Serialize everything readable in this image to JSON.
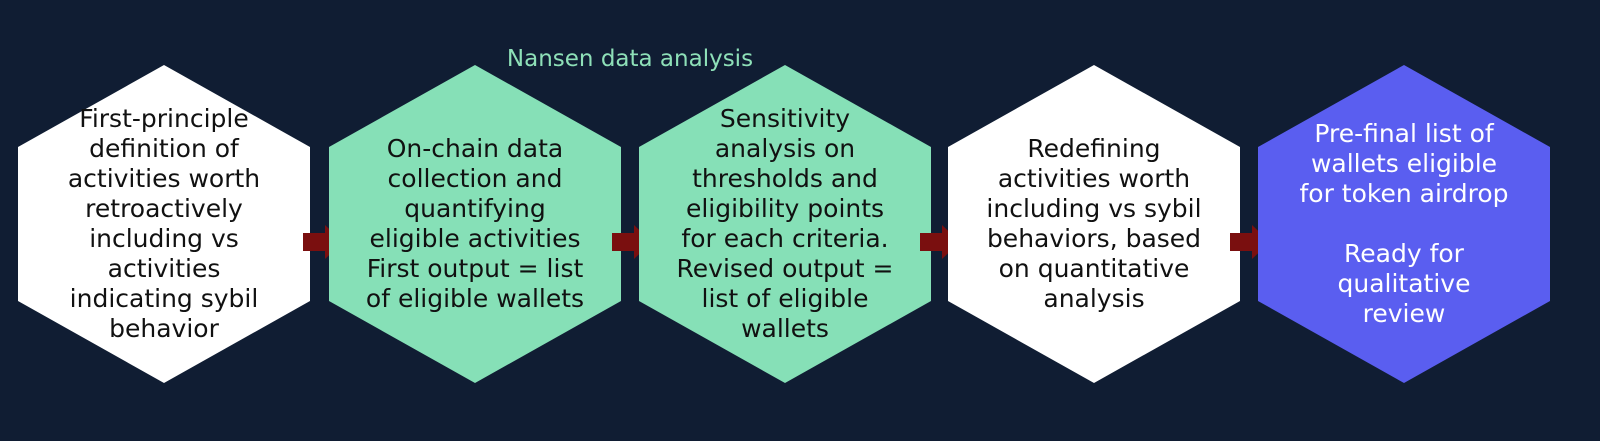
{
  "diagram": {
    "group_label": "Nansen data analysis",
    "steps": [
      {
        "text": "First-principle definition of activities worth retroactively including vs activities indicating sybil behavior",
        "fill": "#ffffff",
        "text_color": "#111111"
      },
      {
        "text": "On-chain data collection and quantifying eligible activities\nFirst output = list of eligible wallets",
        "fill": "#86e0b7",
        "text_color": "#111111"
      },
      {
        "text": "Sensitivity analysis on thresholds and eligibility points for each criteria.\nRevised output = list of eligible wallets",
        "fill": "#86e0b7",
        "text_color": "#111111"
      },
      {
        "text": "Redefining activities worth including vs sybil behaviors, based on quantitative analysis",
        "fill": "#ffffff",
        "text_color": "#111111"
      },
      {
        "text": "Pre-final list of wallets eligible for token airdrop\n\nReady for qualitative review",
        "fill": "#5a5ef0",
        "text_color": "#ffffff"
      }
    ],
    "arrow_color": "#7a0f0f",
    "background_color": "#101d33"
  }
}
